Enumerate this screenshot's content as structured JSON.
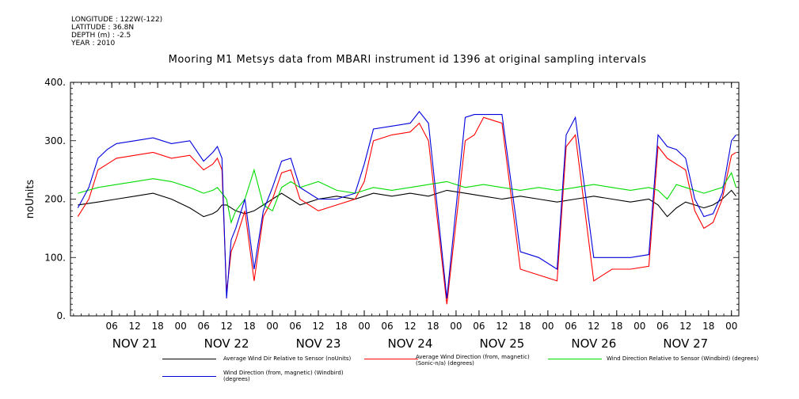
{
  "header": {
    "longitude": "LONGITUDE : 122W(-122)",
    "latitude": "LATITUDE : 36.8N",
    "depth": "DEPTH (m) : -2.5",
    "year": "YEAR : 2010"
  },
  "chart_data": {
    "type": "line",
    "title": "Mooring M1 Metsys data from MBARI instrument id 1396 at original sampling intervals",
    "ylabel": "noUnits",
    "ylim": [
      0,
      400
    ],
    "yticks": [
      0,
      100,
      200,
      300,
      400
    ],
    "ytick_labels": [
      "0.",
      "100.",
      "200.",
      "300.",
      "400."
    ],
    "xlim": [
      -0.7,
      6.58
    ],
    "hour_ticks": [
      {
        "x": -0.25,
        "label": "06"
      },
      {
        "x": 0.0,
        "label": "12"
      },
      {
        "x": 0.25,
        "label": "18"
      },
      {
        "x": 0.5,
        "label": "00"
      },
      {
        "x": 0.75,
        "label": "06"
      },
      {
        "x": 1.0,
        "label": "12"
      },
      {
        "x": 1.25,
        "label": "18"
      },
      {
        "x": 1.5,
        "label": "00"
      },
      {
        "x": 1.75,
        "label": "06"
      },
      {
        "x": 2.0,
        "label": "12"
      },
      {
        "x": 2.25,
        "label": "18"
      },
      {
        "x": 2.5,
        "label": "00"
      },
      {
        "x": 2.75,
        "label": "06"
      },
      {
        "x": 3.0,
        "label": "12"
      },
      {
        "x": 3.25,
        "label": "18"
      },
      {
        "x": 3.5,
        "label": "00"
      },
      {
        "x": 3.75,
        "label": "06"
      },
      {
        "x": 4.0,
        "label": "12"
      },
      {
        "x": 4.25,
        "label": "18"
      },
      {
        "x": 4.5,
        "label": "00"
      },
      {
        "x": 4.75,
        "label": "06"
      },
      {
        "x": 5.0,
        "label": "12"
      },
      {
        "x": 5.25,
        "label": "18"
      },
      {
        "x": 5.5,
        "label": "00"
      },
      {
        "x": 5.75,
        "label": "06"
      },
      {
        "x": 6.0,
        "label": "12"
      },
      {
        "x": 6.25,
        "label": "18"
      },
      {
        "x": 6.5,
        "label": "00"
      }
    ],
    "day_labels": [
      {
        "x": 0.0,
        "label": "NOV 21"
      },
      {
        "x": 1.0,
        "label": "NOV 22"
      },
      {
        "x": 2.0,
        "label": "NOV 23"
      },
      {
        "x": 3.0,
        "label": "NOV 24"
      },
      {
        "x": 4.0,
        "label": "NOV 25"
      },
      {
        "x": 5.0,
        "label": "NOV 26"
      },
      {
        "x": 6.0,
        "label": "NOV 27"
      }
    ],
    "series": [
      {
        "name": "Average Wind Dir Relative to Sensor (noUnits)",
        "color": "#000000",
        "x": [
          -0.62,
          -0.4,
          -0.2,
          0.0,
          0.2,
          0.4,
          0.6,
          0.75,
          0.85,
          0.9,
          0.95,
          1.0,
          1.1,
          1.2,
          1.3,
          1.4,
          1.5,
          1.6,
          1.7,
          1.8,
          1.9,
          2.0,
          2.2,
          2.4,
          2.6,
          2.8,
          3.0,
          3.2,
          3.4,
          3.6,
          3.8,
          4.0,
          4.2,
          4.4,
          4.6,
          4.8,
          5.0,
          5.2,
          5.4,
          5.6,
          5.7,
          5.8,
          5.9,
          6.0,
          6.1,
          6.2,
          6.3,
          6.4,
          6.5,
          6.55
        ],
        "values": [
          190,
          195,
          200,
          205,
          210,
          200,
          185,
          170,
          175,
          180,
          190,
          190,
          180,
          175,
          180,
          190,
          200,
          210,
          200,
          190,
          195,
          200,
          205,
          200,
          210,
          205,
          210,
          205,
          215,
          210,
          205,
          200,
          205,
          200,
          195,
          200,
          205,
          200,
          195,
          200,
          190,
          170,
          185,
          195,
          190,
          185,
          190,
          200,
          215,
          205
        ]
      },
      {
        "name": "Average Wind Direction (from, magnetic) (Sonic-n/a) (degrees)",
        "color": "#ff0000",
        "x": [
          -0.62,
          -0.5,
          -0.4,
          -0.3,
          -0.2,
          0.0,
          0.2,
          0.4,
          0.6,
          0.75,
          0.85,
          0.9,
          0.95,
          1.0,
          1.05,
          1.1,
          1.2,
          1.3,
          1.4,
          1.5,
          1.6,
          1.7,
          1.8,
          2.0,
          2.2,
          2.4,
          2.5,
          2.6,
          2.8,
          3.0,
          3.1,
          3.2,
          3.4,
          3.6,
          3.7,
          3.8,
          4.0,
          4.2,
          4.4,
          4.6,
          4.7,
          4.8,
          5.0,
          5.2,
          5.4,
          5.6,
          5.7,
          5.8,
          5.9,
          6.0,
          6.1,
          6.2,
          6.3,
          6.4,
          6.5,
          6.55
        ],
        "values": [
          170,
          200,
          250,
          260,
          270,
          275,
          280,
          270,
          275,
          250,
          260,
          270,
          250,
          40,
          110,
          130,
          180,
          60,
          170,
          200,
          245,
          250,
          200,
          180,
          190,
          200,
          230,
          300,
          310,
          315,
          330,
          300,
          20,
          300,
          310,
          340,
          330,
          80,
          70,
          60,
          290,
          310,
          60,
          80,
          80,
          85,
          290,
          270,
          260,
          250,
          180,
          150,
          160,
          200,
          275,
          280
        ]
      },
      {
        "name": "Wind Direction Relative to Sensor (Windbird) (degrees)",
        "color": "#00dd00",
        "x": [
          -0.62,
          -0.4,
          -0.2,
          0.0,
          0.2,
          0.4,
          0.6,
          0.75,
          0.85,
          0.9,
          0.95,
          1.0,
          1.05,
          1.1,
          1.2,
          1.3,
          1.4,
          1.5,
          1.6,
          1.7,
          1.8,
          2.0,
          2.2,
          2.4,
          2.6,
          2.8,
          3.0,
          3.2,
          3.4,
          3.6,
          3.8,
          4.0,
          4.2,
          4.4,
          4.6,
          4.8,
          5.0,
          5.2,
          5.4,
          5.6,
          5.7,
          5.8,
          5.9,
          6.0,
          6.1,
          6.2,
          6.3,
          6.4,
          6.5,
          6.55
        ],
        "values": [
          210,
          220,
          225,
          230,
          235,
          230,
          220,
          210,
          215,
          220,
          210,
          200,
          160,
          180,
          200,
          250,
          190,
          180,
          220,
          230,
          220,
          230,
          215,
          210,
          220,
          215,
          220,
          225,
          230,
          220,
          225,
          220,
          215,
          220,
          215,
          220,
          225,
          220,
          215,
          220,
          215,
          200,
          225,
          220,
          215,
          210,
          215,
          220,
          245,
          220
        ]
      },
      {
        "name": "Wind Direction (from, magnetic) (Windbird) (degrees)",
        "color": "#0000dd",
        "x": [
          -0.62,
          -0.5,
          -0.4,
          -0.3,
          -0.2,
          0.0,
          0.2,
          0.4,
          0.6,
          0.75,
          0.85,
          0.9,
          0.95,
          1.0,
          1.05,
          1.1,
          1.2,
          1.3,
          1.4,
          1.5,
          1.6,
          1.7,
          1.8,
          2.0,
          2.2,
          2.4,
          2.5,
          2.6,
          2.8,
          3.0,
          3.1,
          3.2,
          3.4,
          3.6,
          3.7,
          3.8,
          4.0,
          4.2,
          4.4,
          4.6,
          4.7,
          4.8,
          5.0,
          5.2,
          5.4,
          5.6,
          5.7,
          5.8,
          5.9,
          6.0,
          6.1,
          6.2,
          6.3,
          6.4,
          6.5,
          6.55
        ],
        "values": [
          185,
          220,
          270,
          285,
          295,
          300,
          305,
          295,
          300,
          265,
          280,
          290,
          270,
          30,
          130,
          150,
          200,
          80,
          180,
          220,
          265,
          270,
          220,
          200,
          200,
          210,
          260,
          320,
          325,
          330,
          350,
          330,
          30,
          340,
          345,
          345,
          345,
          110,
          100,
          80,
          310,
          340,
          100,
          100,
          100,
          105,
          310,
          290,
          285,
          270,
          200,
          170,
          175,
          210,
          300,
          310
        ]
      }
    ]
  }
}
